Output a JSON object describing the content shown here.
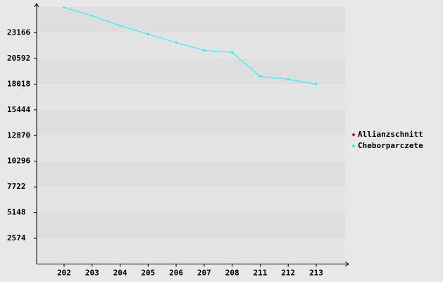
{
  "chart_data": {
    "type": "line",
    "categories": [
      "202",
      "203",
      "204",
      "205",
      "206",
      "207",
      "208",
      "211",
      "212",
      "213"
    ],
    "series": [
      {
        "name": "Allianzschnitt",
        "color": "#cc0000",
        "values": [
          null,
          null,
          null,
          null,
          null,
          null,
          null,
          null,
          null,
          null
        ]
      },
      {
        "name": "Cheborparczete",
        "color": "#00ffff",
        "values": [
          25704,
          24858,
          23871,
          23025,
          22179,
          21403,
          21192,
          18794,
          18512,
          18018
        ]
      }
    ],
    "ylim": [
      0,
      25740
    ],
    "yticks": [
      2574,
      5148,
      7722,
      10296,
      12870,
      15444,
      18018,
      20592,
      23166
    ],
    "grid": true
  }
}
